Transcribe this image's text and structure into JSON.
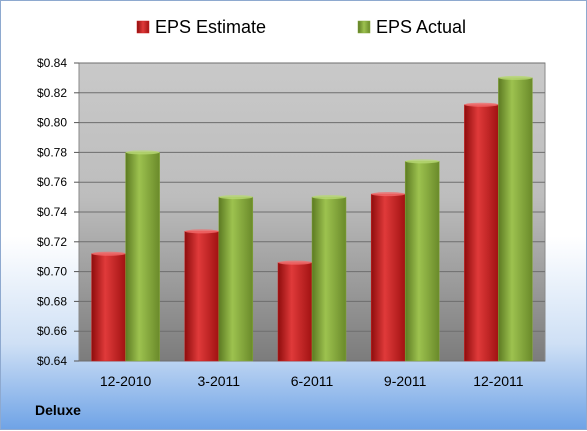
{
  "chart_data": {
    "type": "bar",
    "title": "",
    "xlabel": "",
    "ylabel": "",
    "categories": [
      "12-2010",
      "3-2011",
      "6-2011",
      "9-2011",
      "12-2011"
    ],
    "series": [
      {
        "name": "EPS Estimate",
        "values": [
          0.712,
          0.727,
          0.706,
          0.752,
          0.812
        ],
        "color": "#cc1f1f"
      },
      {
        "name": "EPS Actual",
        "values": [
          0.78,
          0.75,
          0.75,
          0.774,
          0.83
        ],
        "color": "#86a83a"
      }
    ],
    "ylim": [
      0.64,
      0.84
    ],
    "yticks": [
      "$0.64",
      "$0.66",
      "$0.68",
      "$0.70",
      "$0.72",
      "$0.74",
      "$0.76",
      "$0.78",
      "$0.80",
      "$0.82",
      "$0.84"
    ],
    "grid": true,
    "legend_position": "top"
  },
  "footer": {
    "company": "Deluxe"
  }
}
